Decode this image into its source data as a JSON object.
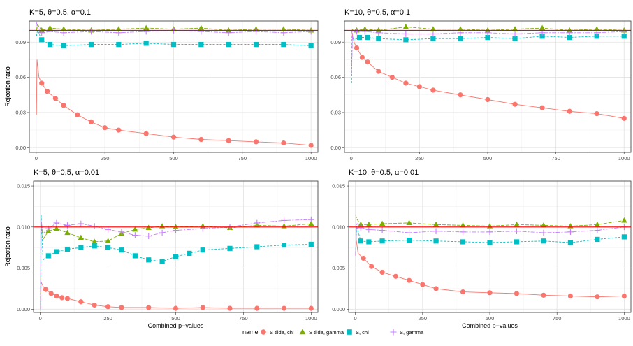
{
  "figure": {
    "xlabel": "Combined p−values",
    "ylabel": "Rejection ratio"
  },
  "legend": {
    "title": "name",
    "position": "bottom",
    "items": [
      {
        "label": "S tilde, chi",
        "color": "#F8766D",
        "shape": "circle"
      },
      {
        "label": "S tilde, gamma",
        "color": "#7CAE00",
        "shape": "triangle"
      },
      {
        "label": "S, chi",
        "color": "#00BFC4",
        "shape": "square"
      },
      {
        "label": "S, gamma",
        "color": "#C77CFF",
        "shape": "plus"
      }
    ]
  },
  "chart_data": [
    {
      "type": "line",
      "title": "K=5, θ=0.5, α=0.1",
      "xlim": [
        -25,
        1025
      ],
      "ylim": [
        -0.004,
        0.108
      ],
      "xticks": [
        0,
        250,
        500,
        750,
        1000
      ],
      "yticks": [
        0.0,
        0.03,
        0.06,
        0.09
      ],
      "ytick_labels": [
        "0.00",
        "0.03",
        "0.06",
        "0.09"
      ],
      "reference_line": 0.1,
      "grid": true,
      "series": [
        {
          "name": "S tilde, chi",
          "x": [
            1,
            3,
            10,
            20,
            40,
            70,
            100,
            150,
            200,
            250,
            300,
            400,
            500,
            600,
            700,
            800,
            900,
            1000
          ],
          "y": [
            0.028,
            0.075,
            0.06,
            0.055,
            0.048,
            0.042,
            0.036,
            0.028,
            0.022,
            0.017,
            0.015,
            0.012,
            0.009,
            0.007,
            0.006,
            0.005,
            0.004,
            0.002
          ]
        },
        {
          "name": "S tilde, gamma",
          "x": [
            1,
            5,
            20,
            50,
            100,
            200,
            300,
            400,
            500,
            600,
            700,
            800,
            900,
            1000
          ],
          "y": [
            0.1,
            0.105,
            0.1,
            0.102,
            0.101,
            0.1,
            0.101,
            0.102,
            0.101,
            0.102,
            0.1,
            0.101,
            0.101,
            0.1
          ]
        },
        {
          "name": "S, chi",
          "x": [
            1,
            5,
            20,
            50,
            100,
            200,
            300,
            400,
            500,
            600,
            700,
            800,
            900,
            1000
          ],
          "y": [
            0.095,
            0.1,
            0.092,
            0.088,
            0.087,
            0.088,
            0.088,
            0.089,
            0.088,
            0.088,
            0.088,
            0.088,
            0.088,
            0.087
          ]
        },
        {
          "name": "S, gamma",
          "x": [
            1,
            5,
            20,
            50,
            100,
            200,
            300,
            400,
            500,
            600,
            700,
            800,
            900,
            1000
          ],
          "y": [
            0.107,
            0.102,
            0.098,
            0.099,
            0.098,
            0.099,
            0.098,
            0.099,
            0.1,
            0.099,
            0.098,
            0.099,
            0.098,
            0.099
          ]
        }
      ]
    },
    {
      "type": "line",
      "title": "K=10, θ=0.5, α=0.1",
      "xlim": [
        -25,
        1025
      ],
      "ylim": [
        -0.004,
        0.108
      ],
      "xticks": [
        0,
        250,
        500,
        750,
        1000
      ],
      "yticks": [
        0.0,
        0.03,
        0.06,
        0.09
      ],
      "ytick_labels": [
        "0.00",
        "0.03",
        "0.06",
        "0.09"
      ],
      "reference_line": 0.1,
      "grid": true,
      "series": [
        {
          "name": "S tilde, chi",
          "x": [
            1,
            5,
            10,
            20,
            40,
            60,
            100,
            150,
            200,
            250,
            300,
            400,
            500,
            600,
            700,
            800,
            900,
            1000
          ],
          "y": [
            0.1,
            0.095,
            0.09,
            0.085,
            0.077,
            0.073,
            0.065,
            0.06,
            0.055,
            0.052,
            0.049,
            0.045,
            0.041,
            0.037,
            0.034,
            0.031,
            0.029,
            0.025
          ]
        },
        {
          "name": "S tilde, gamma",
          "x": [
            1,
            5,
            20,
            50,
            100,
            200,
            300,
            400,
            500,
            600,
            700,
            800,
            900,
            1000
          ],
          "y": [
            0.099,
            0.101,
            0.1,
            0.101,
            0.1,
            0.103,
            0.101,
            0.101,
            0.1,
            0.101,
            0.102,
            0.1,
            0.101,
            0.1
          ]
        },
        {
          "name": "S, chi",
          "x": [
            1,
            3,
            10,
            30,
            60,
            100,
            200,
            300,
            400,
            500,
            600,
            700,
            800,
            900,
            1000
          ],
          "y": [
            0.055,
            0.095,
            0.092,
            0.094,
            0.094,
            0.093,
            0.092,
            0.093,
            0.093,
            0.094,
            0.093,
            0.095,
            0.094,
            0.095,
            0.095
          ]
        },
        {
          "name": "S, gamma",
          "x": [
            1,
            5,
            20,
            50,
            100,
            200,
            300,
            400,
            500,
            600,
            700,
            800,
            900,
            1000
          ],
          "y": [
            0.063,
            0.1,
            0.099,
            0.099,
            0.098,
            0.097,
            0.097,
            0.098,
            0.098,
            0.097,
            0.098,
            0.098,
            0.098,
            0.099
          ]
        }
      ]
    },
    {
      "type": "line",
      "title": "K=5, θ=0.5, α=0.01",
      "xlim": [
        -25,
        1025
      ],
      "ylim": [
        -0.0004,
        0.0156
      ],
      "xticks": [
        0,
        250,
        500,
        750,
        1000
      ],
      "yticks": [
        0.0,
        0.005,
        0.01,
        0.015
      ],
      "ytick_labels": [
        "0.000",
        "0.005",
        "0.010",
        "0.015"
      ],
      "reference_line": 0.01,
      "grid": true,
      "series": [
        {
          "name": "S tilde, chi",
          "x": [
            1,
            3,
            10,
            20,
            40,
            60,
            80,
            100,
            150,
            200,
            250,
            300,
            400,
            500,
            600,
            700,
            800,
            900,
            1000
          ],
          "y": [
            0.0,
            0.0033,
            0.0028,
            0.0024,
            0.0019,
            0.0016,
            0.0014,
            0.0013,
            0.0009,
            0.0005,
            0.0003,
            0.0002,
            0.0002,
            0.0001,
            0.0002,
            0.0001,
            0.0001,
            0.0001,
            0.0001
          ]
        },
        {
          "name": "S tilde, gamma",
          "x": [
            1,
            3,
            10,
            30,
            60,
            100,
            150,
            200,
            250,
            300,
            350,
            400,
            450,
            500,
            600,
            700,
            800,
            900,
            1000
          ],
          "y": [
            0.0,
            0.0105,
            0.0085,
            0.0095,
            0.0098,
            0.0093,
            0.0087,
            0.0082,
            0.0083,
            0.0092,
            0.0097,
            0.0099,
            0.0101,
            0.01,
            0.0101,
            0.0099,
            0.0102,
            0.0101,
            0.0104
          ]
        },
        {
          "name": "S, chi",
          "x": [
            1,
            3,
            10,
            30,
            60,
            100,
            150,
            200,
            250,
            300,
            350,
            400,
            450,
            500,
            550,
            600,
            700,
            800,
            900,
            1000
          ],
          "y": [
            0.0,
            0.0115,
            0.006,
            0.0065,
            0.007,
            0.0073,
            0.0075,
            0.0077,
            0.0075,
            0.0072,
            0.0065,
            0.006,
            0.0058,
            0.0064,
            0.0068,
            0.0072,
            0.0074,
            0.0076,
            0.0078,
            0.0079
          ]
        },
        {
          "name": "S, gamma",
          "x": [
            1,
            3,
            10,
            30,
            60,
            100,
            150,
            200,
            250,
            300,
            350,
            400,
            450,
            500,
            600,
            700,
            800,
            900,
            1000
          ],
          "y": [
            0.0,
            0.0108,
            0.0092,
            0.0098,
            0.0105,
            0.0102,
            0.0104,
            0.0101,
            0.0097,
            0.0094,
            0.009,
            0.0089,
            0.0093,
            0.0096,
            0.0098,
            0.01,
            0.0105,
            0.0108,
            0.0109
          ]
        }
      ]
    },
    {
      "type": "line",
      "title": "K=10, θ=0.5, α=0.01",
      "xlim": [
        -25,
        1025
      ],
      "ylim": [
        -0.0004,
        0.0156
      ],
      "xticks": [
        0,
        250,
        500,
        750,
        1000
      ],
      "yticks": [
        0.0,
        0.005,
        0.01,
        0.015
      ],
      "ytick_labels": [
        "0.000",
        "0.005",
        "0.010",
        "0.015"
      ],
      "reference_line": 0.01,
      "grid": true,
      "series": [
        {
          "name": "S tilde, chi",
          "x": [
            1,
            3,
            10,
            30,
            60,
            100,
            150,
            200,
            250,
            300,
            400,
            500,
            600,
            700,
            800,
            900,
            1000
          ],
          "y": [
            0.0065,
            0.0085,
            0.0068,
            0.0062,
            0.0052,
            0.0045,
            0.004,
            0.0035,
            0.003,
            0.0025,
            0.0021,
            0.002,
            0.0019,
            0.0017,
            0.0016,
            0.0015,
            0.0016
          ]
        },
        {
          "name": "S tilde, gamma",
          "x": [
            1,
            5,
            20,
            50,
            100,
            200,
            300,
            400,
            500,
            600,
            700,
            800,
            900,
            1000
          ],
          "y": [
            0.0115,
            0.011,
            0.0103,
            0.0103,
            0.0104,
            0.0105,
            0.0103,
            0.0102,
            0.0101,
            0.0103,
            0.0102,
            0.0101,
            0.0103,
            0.0108
          ]
        },
        {
          "name": "S, chi",
          "x": [
            1,
            5,
            20,
            50,
            100,
            200,
            300,
            400,
            500,
            600,
            700,
            800,
            900,
            1000
          ],
          "y": [
            0.0068,
            0.0101,
            0.0083,
            0.0082,
            0.0083,
            0.0084,
            0.0083,
            0.0082,
            0.0081,
            0.0082,
            0.0083,
            0.0081,
            0.0085,
            0.0088
          ]
        },
        {
          "name": "S, gamma",
          "x": [
            1,
            5,
            20,
            50,
            100,
            200,
            300,
            400,
            500,
            600,
            700,
            800,
            900,
            1000
          ],
          "y": [
            0.0065,
            0.0105,
            0.0099,
            0.0097,
            0.0096,
            0.0093,
            0.0095,
            0.0094,
            0.0094,
            0.0095,
            0.0093,
            0.0094,
            0.0096,
            0.01
          ]
        }
      ]
    }
  ]
}
